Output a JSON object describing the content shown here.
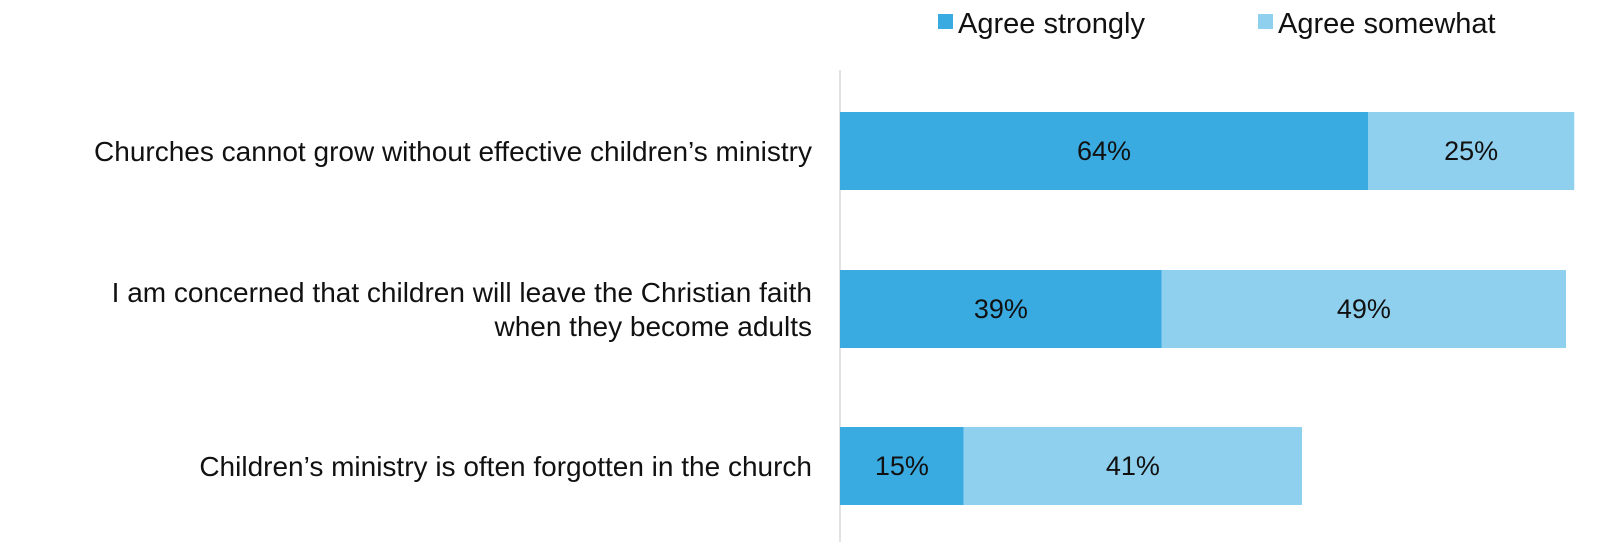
{
  "chart_data": {
    "type": "bar",
    "orientation": "horizontal",
    "stacked": true,
    "categories": [
      [
        "Churches cannot grow without effective children’s ministry"
      ],
      [
        "I am concerned that children will leave the Christian faith",
        "when they become adults"
      ],
      [
        "Children’s ministry is often forgotten in the church"
      ]
    ],
    "series": [
      {
        "name": "Agree strongly",
        "values": [
          64,
          39,
          15
        ],
        "labels": [
          "64%",
          "39%",
          "15%"
        ],
        "color": "#3aabe1"
      },
      {
        "name": "Agree somewhat",
        "values": [
          25,
          49,
          41
        ],
        "labels": [
          "25%",
          "49%",
          "41%"
        ],
        "color": "#90d0ef"
      }
    ],
    "xlim": [
      0,
      88
    ],
    "axis_color": "#d9d9d9",
    "legend_position": "top-right",
    "grid": false,
    "title": "",
    "xlabel": "",
    "ylabel": ""
  }
}
